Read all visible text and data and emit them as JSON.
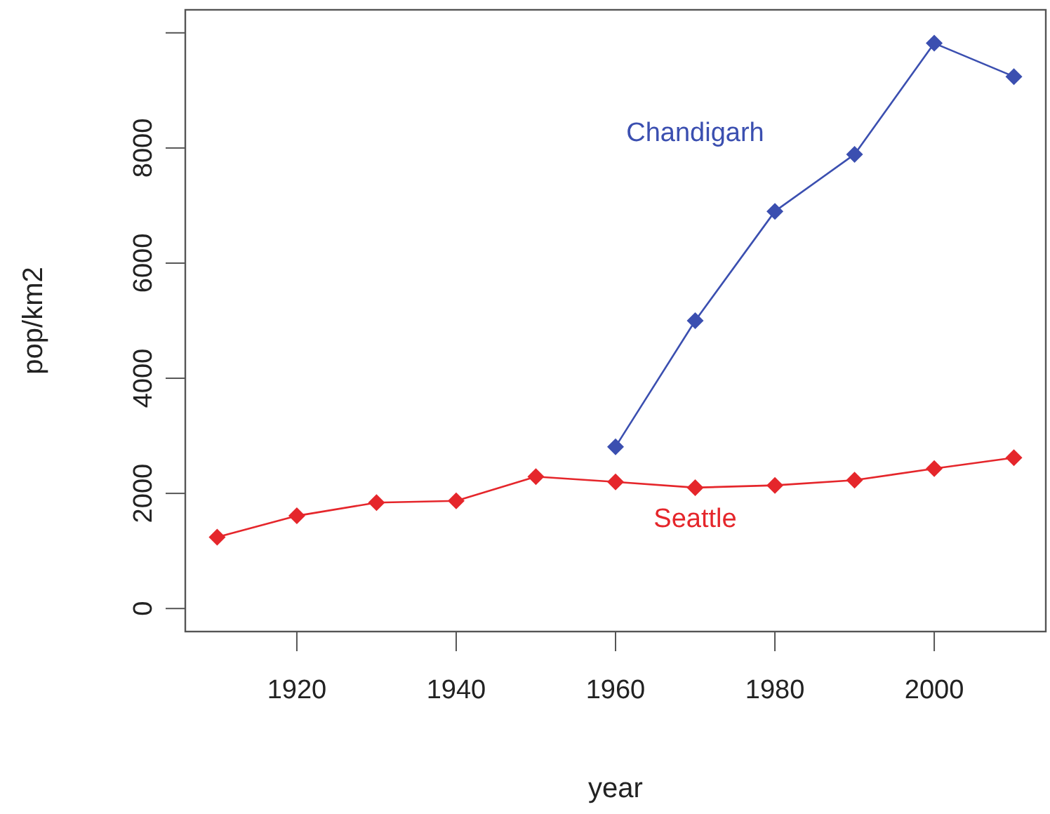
{
  "chart_data": {
    "type": "line",
    "xlabel": "year",
    "ylabel": "pop/km2",
    "xlim": [
      1906,
      2014
    ],
    "xticks": [
      1920,
      1940,
      1960,
      1980,
      2000
    ],
    "ylim": [
      -400,
      10400
    ],
    "yticks": [
      0,
      2000,
      4000,
      6000,
      8000,
      {
        "value": 10000,
        "label": null
      }
    ],
    "marker": "diamond",
    "grid": false,
    "series": [
      {
        "name": "Chandigarh",
        "color": "#3b4fb0",
        "x": [
          1960,
          1970,
          1980,
          1990,
          2000,
          2010
        ],
        "values": [
          2810,
          5000,
          6900,
          7890,
          9820,
          9240
        ]
      },
      {
        "name": "Seattle",
        "color": "#e5262b",
        "x": [
          1910,
          1920,
          1930,
          1940,
          1950,
          1960,
          1970,
          1980,
          1990,
          2000,
          2010
        ],
        "values": [
          1240,
          1610,
          1840,
          1870,
          2290,
          2200,
          2100,
          2140,
          2230,
          2430,
          2620
        ]
      }
    ]
  }
}
